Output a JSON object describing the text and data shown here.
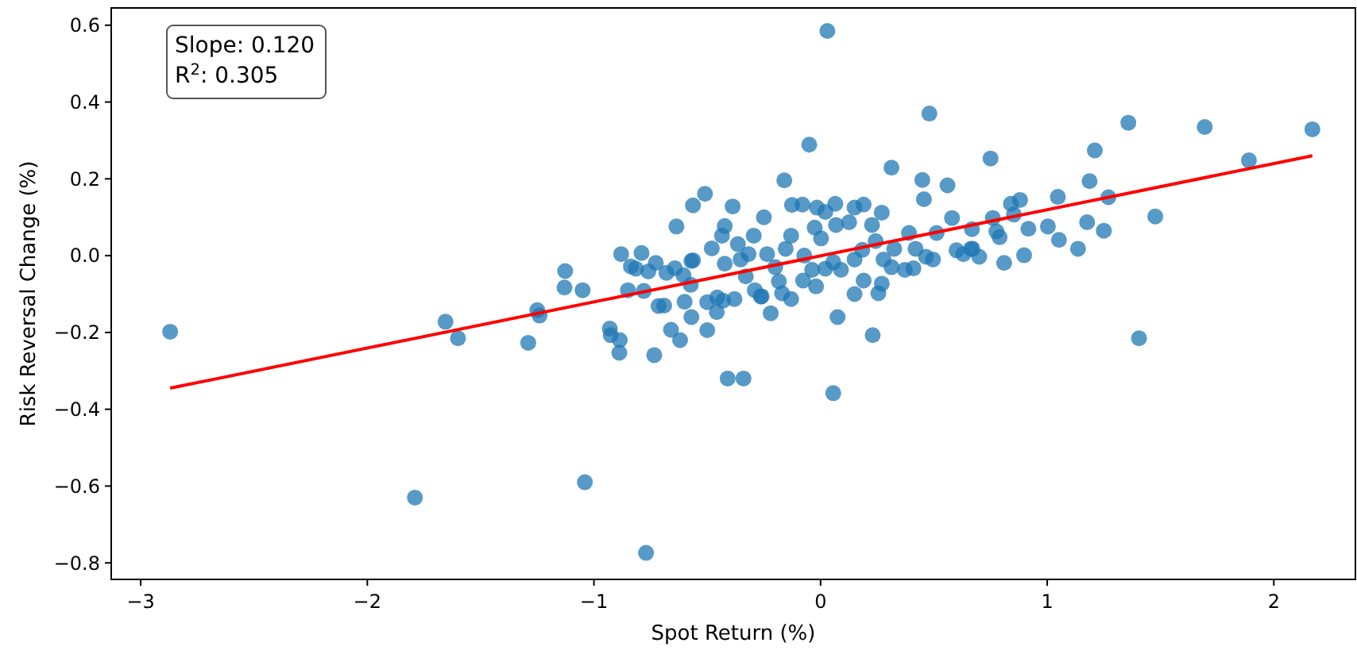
{
  "chart_data": {
    "type": "scatter",
    "xlabel": "Spot Return (%)",
    "ylabel": "Risk Reversal Change (%)",
    "annotations": [
      "Slope: 0.120",
      "R$^{2}$: 0.305"
    ],
    "xlim": [
      -3.13,
      2.36
    ],
    "ylim": [
      -0.843,
      0.645
    ],
    "xticks": [
      {
        "value": -3,
        "label": "−3"
      },
      {
        "value": -2,
        "label": "−2"
      },
      {
        "value": -1,
        "label": "−1"
      },
      0,
      1,
      2
    ],
    "yticks": [
      {
        "value": -0.8,
        "label": "−0.8"
      },
      {
        "value": -0.6,
        "label": "−0.6"
      },
      {
        "value": -0.4,
        "label": "−0.4"
      },
      {
        "value": -0.2,
        "label": "−0.2"
      },
      {
        "value": 0,
        "label": "0.0"
      },
      0.2,
      0.4,
      0.6
    ],
    "marker": "circle",
    "grid": false,
    "series": [
      {
        "color": "#1f77b4",
        "x": [
          -2.87,
          -1.655,
          -1.6,
          -1.79,
          -1.29,
          -1.25,
          -1.24,
          -1.13,
          -1.05,
          -1.04,
          -0.77,
          -0.93,
          -0.926,
          -0.886,
          -0.888,
          -0.85,
          -0.78,
          -0.734,
          -0.715,
          -0.69,
          -0.66,
          -0.62,
          -0.6,
          -0.57,
          -0.5,
          -0.5,
          -0.456,
          -0.458,
          -0.43,
          -0.41,
          -0.34,
          -0.38,
          -0.29,
          -0.26,
          -0.22,
          -0.17,
          -0.13,
          -0.02,
          0.075,
          0.056,
          0.15,
          0.23,
          0.255,
          -1.127,
          -0.88,
          -0.79,
          -0.837,
          -0.815,
          -0.76,
          -0.727,
          -0.68,
          -0.643,
          -0.636,
          -0.563,
          -0.57,
          -0.605,
          -0.573,
          -0.05,
          0.313,
          0.75,
          -0.16,
          0.449,
          0.456,
          0.56,
          -0.51,
          -0.388,
          -0.423,
          -0.435,
          -0.25,
          -0.126,
          -0.08,
          -0.016,
          0.065,
          0.15,
          0.19,
          0.27,
          0.227,
          0.39,
          0.58,
          0.668,
          0.776,
          0.6,
          0.7,
          0.496,
          0.41,
          0.313,
          0.27,
          0.19,
          0.09,
          0.021,
          -0.077,
          -0.184,
          -0.264,
          -0.33,
          -0.563,
          -0.48,
          -0.365,
          -0.318,
          -0.236,
          -0.154,
          -0.072,
          0.002,
          0.068,
          0.126,
          0.184,
          0.243,
          0.325,
          0.465,
          0.63,
          0.664,
          -0.423,
          -0.353,
          -0.2,
          -0.037,
          0.056,
          0.15,
          0.021,
          -0.13,
          -0.295,
          -0.026,
          0.278,
          0.419,
          0.372,
          0.512,
          1.358,
          1.695,
          2.17,
          1.89,
          1.21,
          1.187,
          1.047,
          1.27,
          1.477,
          1.405,
          0.88,
          0.84,
          0.853,
          0.917,
          1.003,
          1.176,
          1.25,
          1.052,
          1.136,
          0.898,
          0.81,
          0.76,
          0.79,
          0.67,
          0.03,
          0.48
        ],
        "values": [
          -0.198,
          -0.172,
          -0.215,
          -0.63,
          -0.227,
          -0.142,
          -0.156,
          -0.083,
          -0.09,
          -0.59,
          -0.774,
          -0.19,
          -0.207,
          -0.22,
          -0.253,
          -0.09,
          -0.092,
          -0.259,
          -0.131,
          -0.13,
          -0.193,
          -0.22,
          -0.12,
          -0.16,
          -0.121,
          -0.194,
          -0.109,
          -0.147,
          -0.117,
          -0.32,
          -0.32,
          -0.113,
          -0.09,
          -0.106,
          -0.15,
          -0.098,
          -0.113,
          -0.08,
          -0.16,
          -0.358,
          -0.1,
          -0.207,
          -0.098,
          -0.04,
          0.004,
          0.007,
          -0.028,
          -0.034,
          -0.041,
          -0.019,
          -0.045,
          -0.033,
          0.076,
          0.131,
          -0.014,
          -0.051,
          -0.076,
          0.289,
          0.229,
          0.253,
          0.196,
          0.197,
          0.147,
          0.183,
          0.161,
          0.128,
          0.077,
          0.052,
          0.1,
          0.132,
          0.133,
          0.125,
          0.135,
          0.125,
          0.133,
          0.112,
          0.08,
          0.059,
          0.098,
          0.069,
          0.063,
          0.014,
          -0.003,
          -0.01,
          -0.033,
          -0.03,
          -0.073,
          -0.065,
          -0.037,
          -0.034,
          -0.065,
          -0.067,
          -0.106,
          -0.054,
          -0.012,
          0.019,
          0.03,
          0.004,
          0.004,
          0.018,
          0,
          0.045,
          0.08,
          0.087,
          0.015,
          0.038,
          0.018,
          -0.003,
          0.004,
          0.018,
          -0.021,
          -0.01,
          -0.03,
          -0.037,
          -0.017,
          -0.01,
          0.114,
          0.052,
          0.052,
          0.073,
          -0.01,
          0.018,
          -0.037,
          0.059,
          0.346,
          0.335,
          0.329,
          0.248,
          0.274,
          0.194,
          0.153,
          0.152,
          0.102,
          -0.215,
          0.145,
          0.135,
          0.107,
          0.07,
          0.076,
          0.087,
          0.065,
          0.041,
          0.018,
          0.001,
          -0.019,
          0.098,
          0.048,
          0.018,
          0.585,
          0.37
        ]
      },
      {
        "type": "line",
        "color": "#ff0000",
        "x": [
          -2.87,
          2.17
        ],
        "values": [
          -0.345,
          0.26
        ],
        "marker": "none"
      }
    ]
  }
}
